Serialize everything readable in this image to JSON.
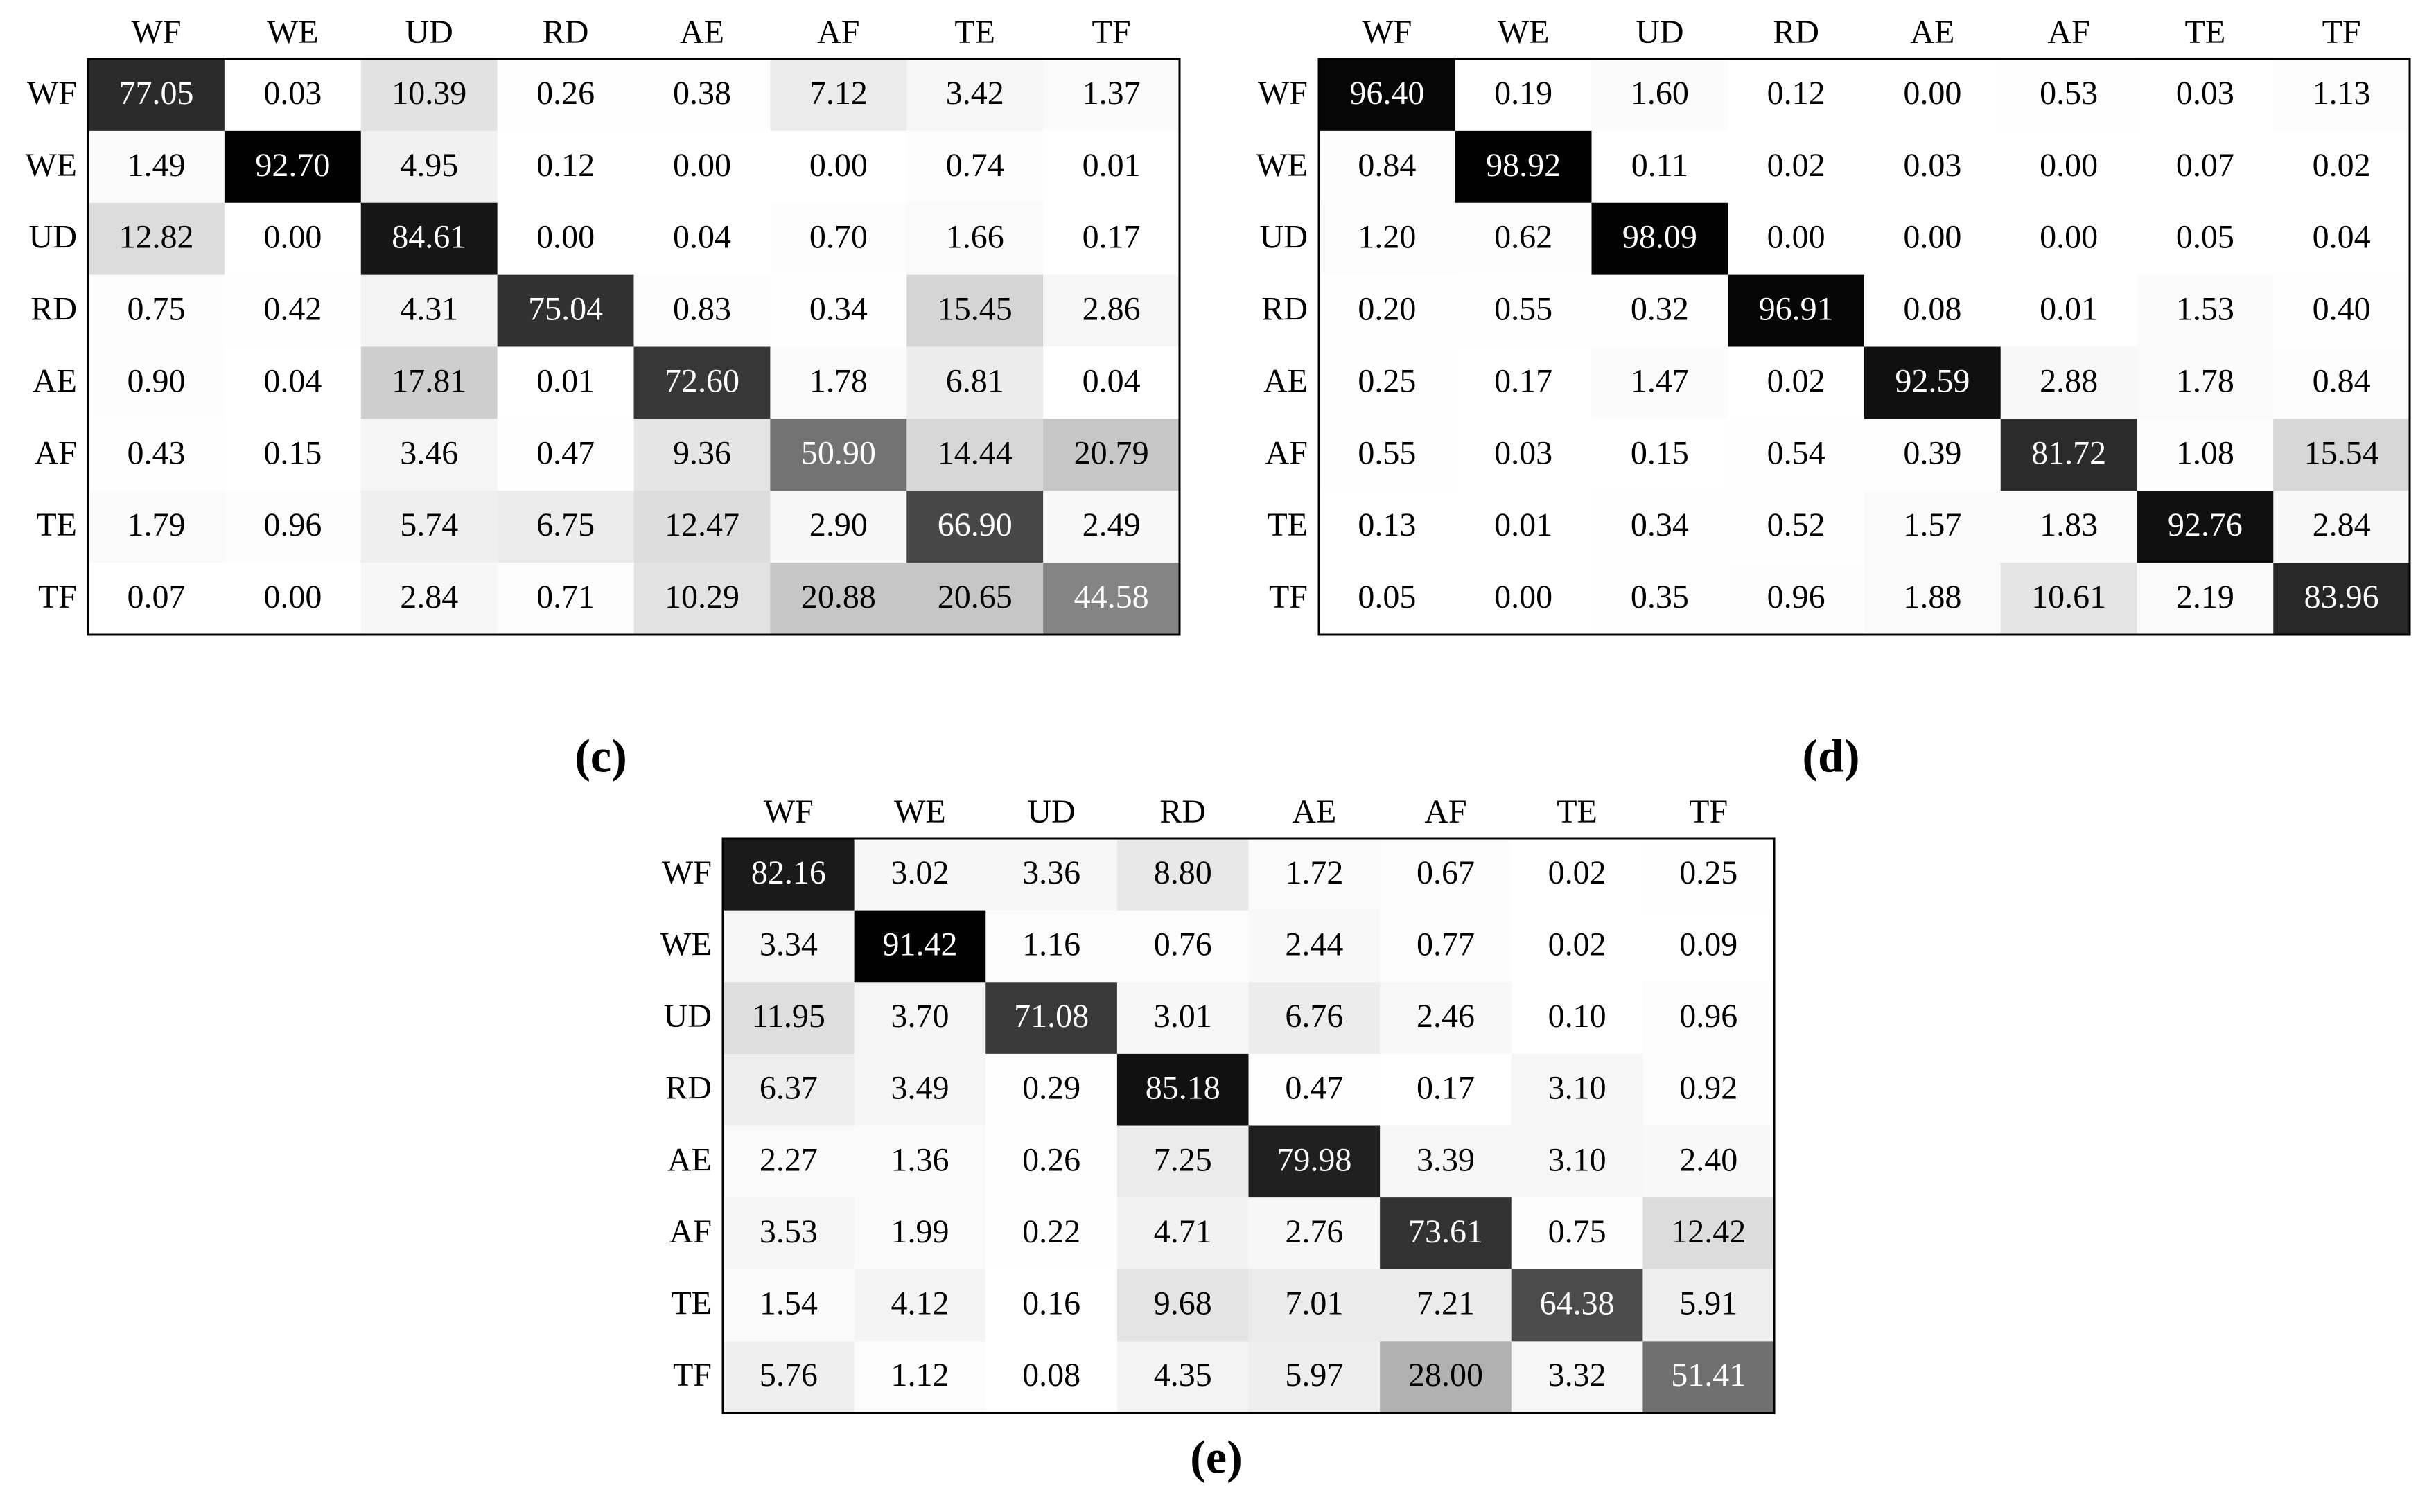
{
  "chart_data": [
    {
      "type": "heatmap",
      "title": "(c)",
      "color_low": "#ffffff",
      "color_high": "#000000",
      "x_categories": [
        "WF",
        "WE",
        "UD",
        "RD",
        "AE",
        "AF",
        "TE",
        "TF"
      ],
      "y_categories": [
        "WF",
        "WE",
        "UD",
        "RD",
        "AE",
        "AF",
        "TE",
        "TF"
      ],
      "values": [
        [
          77.05,
          0.03,
          10.39,
          0.26,
          0.38,
          7.12,
          3.42,
          1.37
        ],
        [
          1.49,
          92.7,
          4.95,
          0.12,
          0.0,
          0.0,
          0.74,
          0.01
        ],
        [
          12.82,
          0.0,
          84.61,
          0.0,
          0.04,
          0.7,
          1.66,
          0.17
        ],
        [
          0.75,
          0.42,
          4.31,
          75.04,
          0.83,
          0.34,
          15.45,
          2.86
        ],
        [
          0.9,
          0.04,
          17.81,
          0.01,
          72.6,
          1.78,
          6.81,
          0.04
        ],
        [
          0.43,
          0.15,
          3.46,
          0.47,
          9.36,
          50.9,
          14.44,
          20.79
        ],
        [
          1.79,
          0.96,
          5.74,
          6.75,
          12.47,
          2.9,
          66.9,
          2.49
        ],
        [
          0.07,
          0.0,
          2.84,
          0.71,
          10.29,
          20.88,
          20.65,
          44.58
        ]
      ],
      "value_labels": [
        [
          "77.05",
          "0.03",
          "10.39",
          "0.26",
          "0.38",
          "7.12",
          "3.42",
          "1.37"
        ],
        [
          "1.49",
          "92.70",
          "4.95",
          "0.12",
          "0.00",
          "0.00",
          "0.74",
          "0.01"
        ],
        [
          "12.82",
          "0.00",
          "84.61",
          "0.00",
          "0.04",
          "0.70",
          "1.66",
          "0.17"
        ],
        [
          "0.75",
          "0.42",
          "4.31",
          "75.04",
          "0.83",
          "0.34",
          "15.45",
          "2.86"
        ],
        [
          "0.90",
          "0.04",
          "17.81",
          "0.01",
          "72.60",
          "1.78",
          "6.81",
          "0.04"
        ],
        [
          "0.43",
          "0.15",
          "3.46",
          "0.47",
          "9.36",
          "50.90",
          "14.44",
          "20.79"
        ],
        [
          "1.79",
          "0.96",
          "5.74",
          "6.75",
          "12.47",
          "2.90",
          "66.90",
          "2.49"
        ],
        [
          "0.07",
          "0.00",
          "2.84",
          "0.71",
          "10.29",
          "20.88",
          "20.65",
          "44.58"
        ]
      ]
    },
    {
      "type": "heatmap",
      "title": "(d)",
      "color_low": "#ffffff",
      "color_high": "#000000",
      "x_categories": [
        "WF",
        "WE",
        "UD",
        "RD",
        "AE",
        "AF",
        "TE",
        "TF"
      ],
      "y_categories": [
        "WF",
        "WE",
        "UD",
        "RD",
        "AE",
        "AF",
        "TE",
        "TF"
      ],
      "values": [
        [
          96.4,
          0.19,
          1.6,
          0.12,
          0.0,
          0.53,
          0.03,
          1.13
        ],
        [
          0.84,
          98.92,
          0.11,
          0.02,
          0.03,
          0.0,
          0.07,
          0.02
        ],
        [
          1.2,
          0.62,
          98.09,
          0.0,
          0.0,
          0.0,
          0.05,
          0.04
        ],
        [
          0.2,
          0.55,
          0.32,
          96.91,
          0.08,
          0.01,
          1.53,
          0.4
        ],
        [
          0.25,
          0.17,
          1.47,
          0.02,
          92.59,
          2.88,
          1.78,
          0.84
        ],
        [
          0.55,
          0.03,
          0.15,
          0.54,
          0.39,
          81.72,
          1.08,
          15.54
        ],
        [
          0.13,
          0.01,
          0.34,
          0.52,
          1.57,
          1.83,
          92.76,
          2.84
        ],
        [
          0.05,
          0.0,
          0.35,
          0.96,
          1.88,
          10.61,
          2.19,
          83.96
        ]
      ],
      "value_labels": [
        [
          "96.40",
          "0.19",
          "1.60",
          "0.12",
          "0.00",
          "0.53",
          "0.03",
          "1.13"
        ],
        [
          "0.84",
          "98.92",
          "0.11",
          "0.02",
          "0.03",
          "0.00",
          "0.07",
          "0.02"
        ],
        [
          "1.20",
          "0.62",
          "98.09",
          "0.00",
          "0.00",
          "0.00",
          "0.05",
          "0.04"
        ],
        [
          "0.20",
          "0.55",
          "0.32",
          "96.91",
          "0.08",
          "0.01",
          "1.53",
          "0.40"
        ],
        [
          "0.25",
          "0.17",
          "1.47",
          "0.02",
          "92.59",
          "2.88",
          "1.78",
          "0.84"
        ],
        [
          "0.55",
          "0.03",
          "0.15",
          "0.54",
          "0.39",
          "81.72",
          "1.08",
          "15.54"
        ],
        [
          "0.13",
          "0.01",
          "0.34",
          "0.52",
          "1.57",
          "1.83",
          "92.76",
          "2.84"
        ],
        [
          "0.05",
          "0.00",
          "0.35",
          "0.96",
          "1.88",
          "10.61",
          "2.19",
          "83.96"
        ]
      ]
    },
    {
      "type": "heatmap",
      "title": "(e)",
      "color_low": "#ffffff",
      "color_high": "#000000",
      "x_categories": [
        "WF",
        "WE",
        "UD",
        "RD",
        "AE",
        "AF",
        "TE",
        "TF"
      ],
      "y_categories": [
        "WF",
        "WE",
        "UD",
        "RD",
        "AE",
        "AF",
        "TE",
        "TF"
      ],
      "values": [
        [
          82.16,
          3.02,
          3.36,
          8.8,
          1.72,
          0.67,
          0.02,
          0.25
        ],
        [
          3.34,
          91.42,
          1.16,
          0.76,
          2.44,
          0.77,
          0.02,
          0.09
        ],
        [
          11.95,
          3.7,
          71.08,
          3.01,
          6.76,
          2.46,
          0.1,
          0.96
        ],
        [
          6.37,
          3.49,
          0.29,
          85.18,
          0.47,
          0.17,
          3.1,
          0.92
        ],
        [
          2.27,
          1.36,
          0.26,
          7.25,
          79.98,
          3.39,
          3.1,
          2.4
        ],
        [
          3.53,
          1.99,
          0.22,
          4.71,
          2.76,
          73.61,
          0.75,
          12.42
        ],
        [
          1.54,
          4.12,
          0.16,
          9.68,
          7.01,
          7.21,
          64.38,
          5.91
        ],
        [
          5.76,
          1.12,
          0.08,
          4.35,
          5.97,
          28.0,
          3.32,
          51.41
        ]
      ],
      "value_labels": [
        [
          "82.16",
          "3.02",
          "3.36",
          "8.80",
          "1.72",
          "0.67",
          "0.02",
          "0.25"
        ],
        [
          "3.34",
          "91.42",
          "1.16",
          "0.76",
          "2.44",
          "0.77",
          "0.02",
          "0.09"
        ],
        [
          "11.95",
          "3.70",
          "71.08",
          "3.01",
          "6.76",
          "2.46",
          "0.10",
          "0.96"
        ],
        [
          "6.37",
          "3.49",
          "0.29",
          "85.18",
          "0.47",
          "0.17",
          "3.10",
          "0.92"
        ],
        [
          "2.27",
          "1.36",
          "0.26",
          "7.25",
          "79.98",
          "3.39",
          "3.10",
          "2.40"
        ],
        [
          "3.53",
          "1.99",
          "0.22",
          "4.71",
          "2.76",
          "73.61",
          "0.75",
          "12.42"
        ],
        [
          "1.54",
          "4.12",
          "0.16",
          "9.68",
          "7.01",
          "7.21",
          "64.38",
          "5.91"
        ],
        [
          "5.76",
          "1.12",
          "0.08",
          "4.35",
          "5.97",
          "28.00",
          "3.32",
          "51.41"
        ]
      ]
    }
  ]
}
